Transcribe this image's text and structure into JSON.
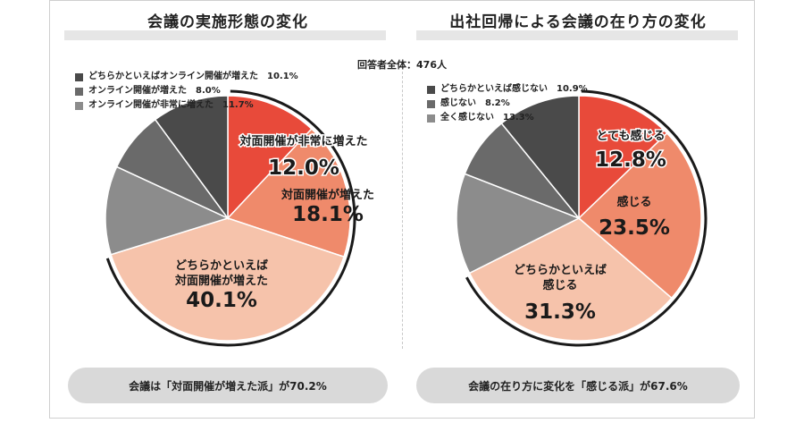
{
  "respondents": "回答者全体：476人",
  "chart_data": [
    {
      "type": "pie",
      "title": "会議の実施形態の変化",
      "series": [
        {
          "name": "対面開催が非常に増えた",
          "value": 12.0,
          "display": "12.0%",
          "color": "#e84a3a",
          "label_lines": [
            "対面開催が非常に増えた"
          ],
          "in_legend": false
        },
        {
          "name": "対面開催が増えた",
          "value": 18.1,
          "display": "18.1%",
          "color": "#ef8a6b",
          "label_lines": [
            "対面開催が増えた"
          ],
          "in_legend": false
        },
        {
          "name": "どちらかといえば対面開催が増えた",
          "value": 40.1,
          "display": "40.1%",
          "color": "#f6c3ab",
          "label_lines": [
            "どちらかといえば",
            "対面開催が増えた"
          ],
          "in_legend": false
        },
        {
          "name": "オンライン開催が非常に増えた",
          "value": 11.7,
          "display": "11.7%",
          "color": "#8c8c8c",
          "in_legend": true
        },
        {
          "name": "オンライン開催が増えた",
          "value": 8.0,
          "display": "8.0%",
          "color": "#6a6a6a",
          "in_legend": true
        },
        {
          "name": "どちらかといえばオンライン開催が増えた",
          "value": 10.1,
          "display": "10.1%",
          "color": "#4a4a4a",
          "in_legend": true
        }
      ],
      "legend_order": [
        5,
        4,
        3
      ],
      "summary": "会議は「対面開催が増えた派」が70.2%"
    },
    {
      "type": "pie",
      "title": "出社回帰による会議の在り方の変化",
      "series": [
        {
          "name": "とても感じる",
          "value": 12.8,
          "display": "12.8%",
          "color": "#e84a3a",
          "label_lines": [
            "とても感じる"
          ],
          "in_legend": false
        },
        {
          "name": "感じる",
          "value": 23.5,
          "display": "23.5%",
          "color": "#ef8a6b",
          "label_lines": [
            "感じる"
          ],
          "in_legend": false
        },
        {
          "name": "どちらかといえば感じる",
          "value": 31.3,
          "display": "31.3%",
          "color": "#f6c3ab",
          "label_lines": [
            "どちらかといえば",
            "感じる"
          ],
          "in_legend": false
        },
        {
          "name": "全く感じない",
          "value": 13.3,
          "display": "13.3%",
          "color": "#8c8c8c",
          "in_legend": true
        },
        {
          "name": "感じない",
          "value": 8.2,
          "display": "8.2%",
          "color": "#6a6a6a",
          "in_legend": true
        },
        {
          "name": "どちらかといえば感じない",
          "value": 10.9,
          "display": "10.9%",
          "color": "#4a4a4a",
          "in_legend": true
        }
      ],
      "legend_order": [
        5,
        4,
        3
      ],
      "summary": "会議の在り方に変化を「感じる派」が67.6%"
    }
  ]
}
